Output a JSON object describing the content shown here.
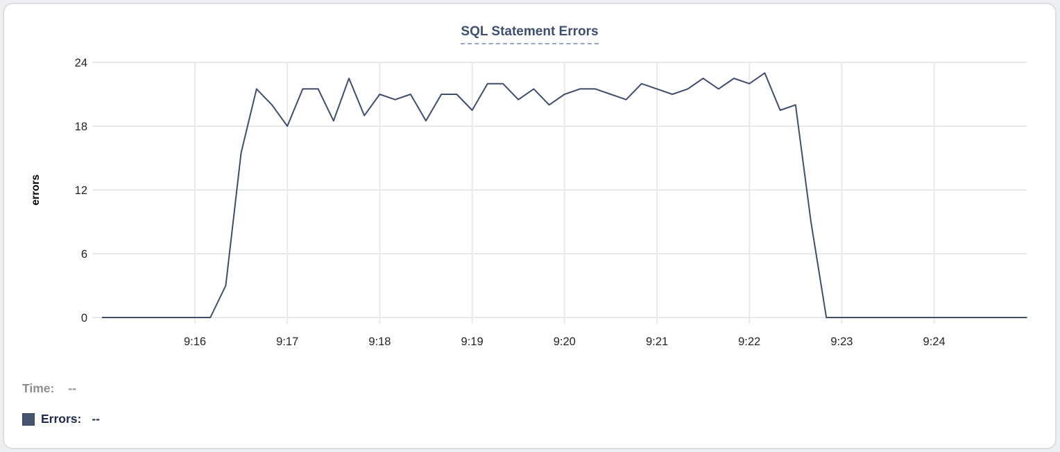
{
  "tooltip": {
    "time_label": "Time:",
    "time_value": "--",
    "errors_label": "Errors:",
    "errors_value": "--"
  },
  "colors": {
    "series_line": "#3e4c6d",
    "legend_swatch": "#47546f",
    "title_text": "#3e4f70",
    "title_underline": "#97a2c1",
    "gridline": "#e9e9e9",
    "tick_text": "#222222",
    "time_label_gray": "#8d8d8d",
    "errors_label_navy": "#202a4a",
    "card_border": "#dcdee1"
  },
  "chart_data": {
    "type": "line",
    "title": "SQL Statement Errors",
    "xlabel": "",
    "ylabel": "errors",
    "ylim": [
      0,
      24
    ],
    "y_ticks": [
      0,
      6,
      12,
      18,
      24
    ],
    "x_ticks": [
      "9:16",
      "9:17",
      "9:18",
      "9:19",
      "9:20",
      "9:21",
      "9:22",
      "9:23",
      "9:24"
    ],
    "x_range": [
      "9:15:00",
      "9:25:00"
    ],
    "grid": true,
    "legend_position": "bottom-left",
    "series": [
      {
        "name": "Errors",
        "color": "#3e4c6d",
        "x": [
          "9:15:00",
          "9:15:10",
          "9:15:20",
          "9:15:30",
          "9:15:40",
          "9:15:50",
          "9:16:00",
          "9:16:10",
          "9:16:20",
          "9:16:30",
          "9:16:40",
          "9:16:50",
          "9:17:00",
          "9:17:10",
          "9:17:20",
          "9:17:30",
          "9:17:40",
          "9:17:50",
          "9:18:00",
          "9:18:10",
          "9:18:20",
          "9:18:30",
          "9:18:40",
          "9:18:50",
          "9:19:00",
          "9:19:10",
          "9:19:20",
          "9:19:30",
          "9:19:40",
          "9:19:50",
          "9:20:00",
          "9:20:10",
          "9:20:20",
          "9:20:30",
          "9:20:40",
          "9:20:50",
          "9:21:00",
          "9:21:10",
          "9:21:20",
          "9:21:30",
          "9:21:40",
          "9:21:50",
          "9:22:00",
          "9:22:10",
          "9:22:20",
          "9:22:30",
          "9:22:40",
          "9:22:50",
          "9:23:00",
          "9:23:10",
          "9:23:20",
          "9:23:30",
          "9:23:40",
          "9:23:50",
          "9:24:00",
          "9:24:10",
          "9:24:20",
          "9:24:30",
          "9:24:40",
          "9:24:50",
          "9:25:00"
        ],
        "values": [
          0,
          0,
          0,
          0,
          0,
          0,
          0,
          0,
          3,
          15.5,
          21.5,
          20,
          18,
          21.5,
          21.5,
          18.5,
          22.5,
          19,
          21,
          20.5,
          21,
          18.5,
          21,
          21,
          19.5,
          22,
          22,
          20.5,
          21.5,
          20,
          21,
          21.5,
          21.5,
          21,
          20.5,
          22,
          21.5,
          21,
          21.5,
          22.5,
          21.5,
          22.5,
          22,
          23,
          19.5,
          20,
          9,
          0,
          0,
          0,
          0,
          0,
          0,
          0,
          0,
          0,
          0,
          0,
          0,
          0,
          0
        ]
      }
    ]
  }
}
